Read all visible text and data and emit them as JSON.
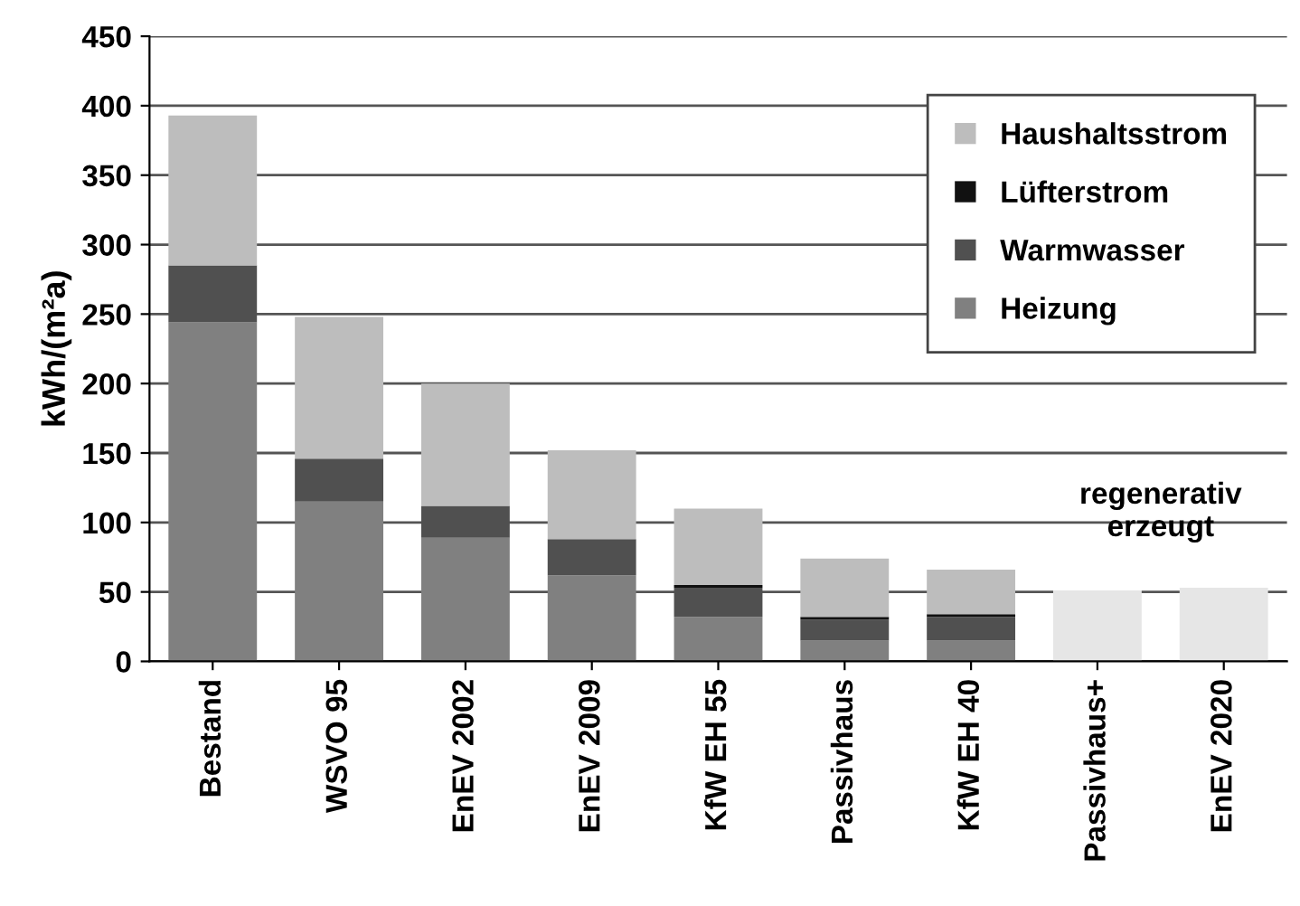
{
  "chart_data": {
    "type": "bar",
    "stacked": true,
    "ylabel": "kWh/(m²a)",
    "categories": [
      "Bestand",
      "WSVO 95",
      "EnEV 2002",
      "EnEV 2009",
      "KfW EH 55",
      "Passivhaus",
      "KfW EH 40",
      "Passivhaus+",
      "EnEV 2020"
    ],
    "series": [
      {
        "name": "Heizung",
        "color": "#808080",
        "values": [
          244,
          115,
          89,
          62,
          32,
          15,
          15,
          0,
          0
        ]
      },
      {
        "name": "Warmwasser",
        "color": "#505050",
        "values": [
          41,
          31,
          23,
          26,
          21,
          15,
          17,
          0,
          0
        ]
      },
      {
        "name": "Lüfterstrom",
        "color": "#111111",
        "values": [
          0,
          0,
          0,
          0,
          2,
          2,
          2,
          0,
          0
        ]
      },
      {
        "name": "Haushaltsstrom",
        "color": "#bdbdbd",
        "colors": [
          "#bdbdbd",
          "#bdbdbd",
          "#bdbdbd",
          "#bdbdbd",
          "#bdbdbd",
          "#bdbdbd",
          "#bdbdbd",
          "#e6e6e6",
          "#e6e6e6"
        ],
        "values": [
          108,
          102,
          88,
          64,
          55,
          42,
          32,
          51,
          53
        ]
      }
    ],
    "ylim": [
      0,
      450
    ],
    "yticks": [
      0,
      50,
      100,
      150,
      200,
      250,
      300,
      350,
      400,
      450
    ],
    "grid": "y",
    "legend": "top right",
    "annotations": [
      "regenerativ\nerzeugt"
    ]
  }
}
